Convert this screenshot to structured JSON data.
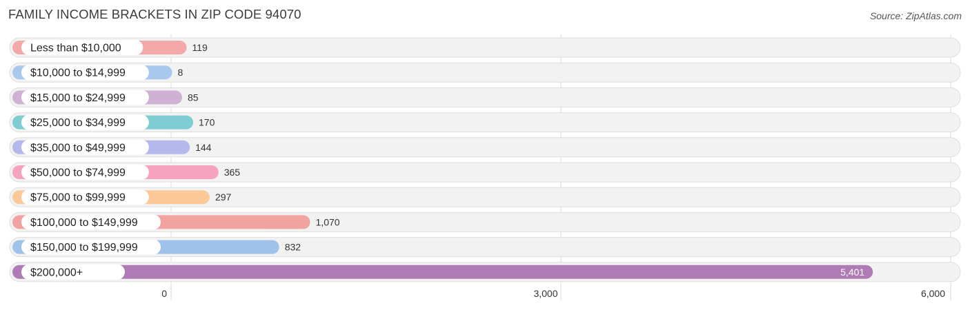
{
  "header": {
    "title": "FAMILY INCOME BRACKETS IN ZIP CODE 94070",
    "source": "Source: ZipAtlas.com"
  },
  "chart_data": {
    "type": "bar",
    "orientation": "horizontal",
    "categories": [
      "Less than $10,000",
      "$10,000 to $14,999",
      "$15,000 to $24,999",
      "$25,000 to $34,999",
      "$35,000 to $49,999",
      "$50,000 to $74,999",
      "$75,000 to $99,999",
      "$100,000 to $149,999",
      "$150,000 to $199,999",
      "$200,000+"
    ],
    "values": [
      119,
      8,
      85,
      170,
      144,
      365,
      297,
      1070,
      832,
      5401
    ],
    "value_labels": [
      "119",
      "8",
      "85",
      "170",
      "144",
      "365",
      "297",
      "1,070",
      "832",
      "5,401"
    ],
    "colors": [
      "#f4a9a8",
      "#a8c8ee",
      "#cfb1d4",
      "#7ecdd2",
      "#b5b8ea",
      "#f7a3bf",
      "#fdc999",
      "#f0a39f",
      "#9fc2eb",
      "#ae7bb5"
    ],
    "xlim": [
      0,
      6000
    ],
    "xticks": [
      0,
      3000,
      6000
    ],
    "xtick_labels": [
      "0",
      "3,000",
      "6,000"
    ],
    "grid": true
  }
}
